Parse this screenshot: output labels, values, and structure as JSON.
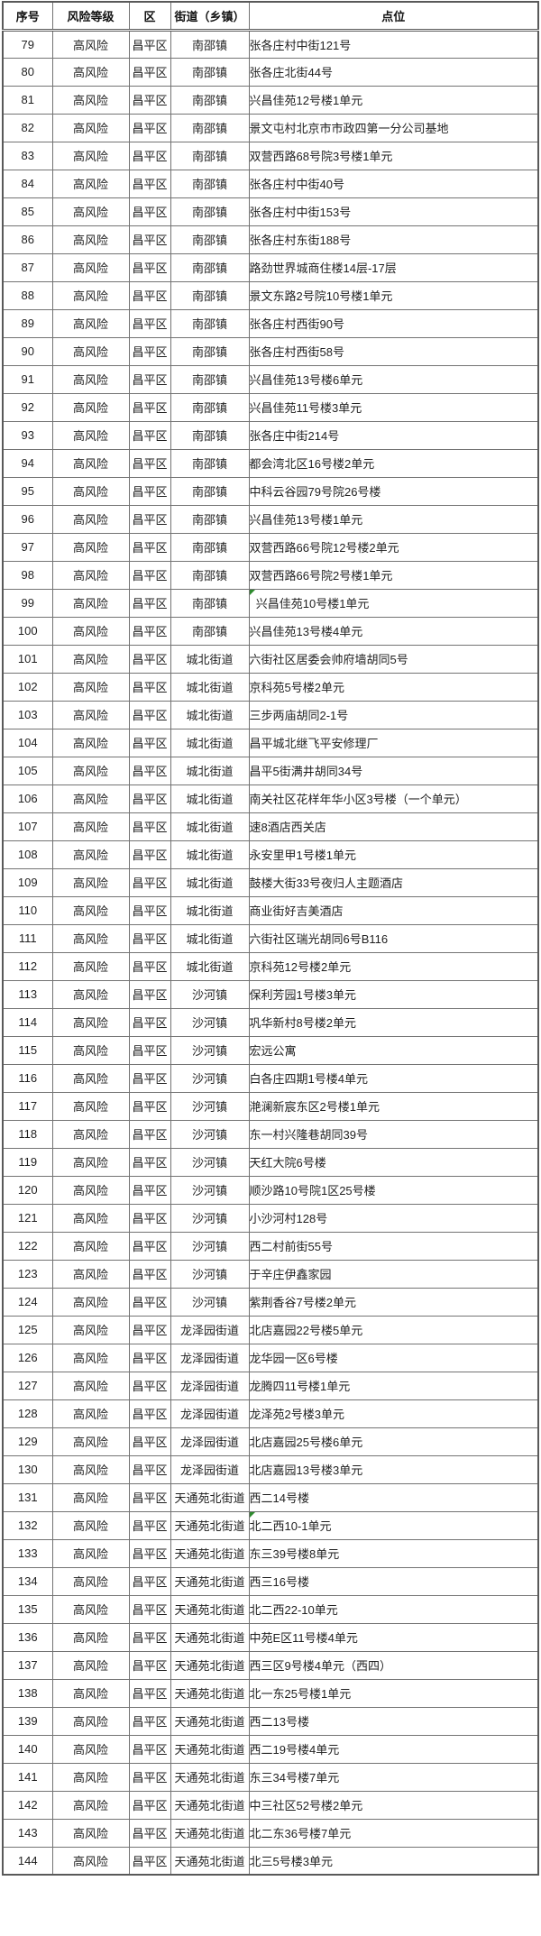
{
  "colors": {
    "grid_border": "#737373",
    "outer_border": "#595959",
    "text": "#1f1f1f",
    "error_marker_green": "#2e8b2e"
  },
  "table": {
    "headers": [
      "序号",
      "风险等级",
      "区",
      "街道（乡镇）",
      "点位"
    ],
    "rows": [
      {
        "no": "79",
        "risk": "高风险",
        "district": "昌平区",
        "street": "南邵镇",
        "location": "张各庄村中街121号",
        "marker": false
      },
      {
        "no": "80",
        "risk": "高风险",
        "district": "昌平区",
        "street": "南邵镇",
        "location": "张各庄北街44号",
        "marker": false
      },
      {
        "no": "81",
        "risk": "高风险",
        "district": "昌平区",
        "street": "南邵镇",
        "location": "兴昌佳苑12号楼1单元",
        "marker": false
      },
      {
        "no": "82",
        "risk": "高风险",
        "district": "昌平区",
        "street": "南邵镇",
        "location": "景文屯村北京市市政四第一分公司基地",
        "marker": false
      },
      {
        "no": "83",
        "risk": "高风险",
        "district": "昌平区",
        "street": "南邵镇",
        "location": "双营西路68号院3号楼1单元",
        "marker": false
      },
      {
        "no": "84",
        "risk": "高风险",
        "district": "昌平区",
        "street": "南邵镇",
        "location": "张各庄村中街40号",
        "marker": false
      },
      {
        "no": "85",
        "risk": "高风险",
        "district": "昌平区",
        "street": "南邵镇",
        "location": "张各庄村中街153号",
        "marker": false
      },
      {
        "no": "86",
        "risk": "高风险",
        "district": "昌平区",
        "street": "南邵镇",
        "location": "张各庄村东街188号",
        "marker": false
      },
      {
        "no": "87",
        "risk": "高风险",
        "district": "昌平区",
        "street": "南邵镇",
        "location": "路劲世界城商住楼14层-17层",
        "marker": false
      },
      {
        "no": "88",
        "risk": "高风险",
        "district": "昌平区",
        "street": "南邵镇",
        "location": "景文东路2号院10号楼1单元",
        "marker": false
      },
      {
        "no": "89",
        "risk": "高风险",
        "district": "昌平区",
        "street": "南邵镇",
        "location": "张各庄村西街90号",
        "marker": false
      },
      {
        "no": "90",
        "risk": "高风险",
        "district": "昌平区",
        "street": "南邵镇",
        "location": "张各庄村西街58号",
        "marker": false
      },
      {
        "no": "91",
        "risk": "高风险",
        "district": "昌平区",
        "street": "南邵镇",
        "location": "兴昌佳苑13号楼6单元",
        "marker": false
      },
      {
        "no": "92",
        "risk": "高风险",
        "district": "昌平区",
        "street": "南邵镇",
        "location": "兴昌佳苑11号楼3单元",
        "marker": false
      },
      {
        "no": "93",
        "risk": "高风险",
        "district": "昌平区",
        "street": "南邵镇",
        "location": "张各庄中街214号",
        "marker": false
      },
      {
        "no": "94",
        "risk": "高风险",
        "district": "昌平区",
        "street": "南邵镇",
        "location": "都会湾北区16号楼2单元",
        "marker": false
      },
      {
        "no": "95",
        "risk": "高风险",
        "district": "昌平区",
        "street": "南邵镇",
        "location": "中科云谷园79号院26号楼",
        "marker": false
      },
      {
        "no": "96",
        "risk": "高风险",
        "district": "昌平区",
        "street": "南邵镇",
        "location": "兴昌佳苑13号楼1单元",
        "marker": false
      },
      {
        "no": "97",
        "risk": "高风险",
        "district": "昌平区",
        "street": "南邵镇",
        "location": "双营西路66号院12号楼2单元",
        "marker": false
      },
      {
        "no": "98",
        "risk": "高风险",
        "district": "昌平区",
        "street": "南邵镇",
        "location": "双营西路66号院2号楼1单元",
        "marker": false
      },
      {
        "no": "99",
        "risk": "高风险",
        "district": "昌平区",
        "street": "南邵镇",
        "location": "  兴昌佳苑10号楼1单元",
        "marker": true
      },
      {
        "no": "100",
        "risk": "高风险",
        "district": "昌平区",
        "street": "南邵镇",
        "location": "兴昌佳苑13号楼4单元",
        "marker": false
      },
      {
        "no": "101",
        "risk": "高风险",
        "district": "昌平区",
        "street": "城北街道",
        "location": "六街社区居委会帅府墙胡同5号",
        "marker": false
      },
      {
        "no": "102",
        "risk": "高风险",
        "district": "昌平区",
        "street": "城北街道",
        "location": "京科苑5号楼2单元",
        "marker": false
      },
      {
        "no": "103",
        "risk": "高风险",
        "district": "昌平区",
        "street": "城北街道",
        "location": "三步两庙胡同2-1号",
        "marker": false
      },
      {
        "no": "104",
        "risk": "高风险",
        "district": "昌平区",
        "street": "城北街道",
        "location": "昌平城北继飞平安修理厂",
        "marker": false
      },
      {
        "no": "105",
        "risk": "高风险",
        "district": "昌平区",
        "street": "城北街道",
        "location": "昌平5街满井胡同34号",
        "marker": false
      },
      {
        "no": "106",
        "risk": "高风险",
        "district": "昌平区",
        "street": "城北街道",
        "location": "南关社区花样年华小区3号楼（一个单元）",
        "marker": false
      },
      {
        "no": "107",
        "risk": "高风险",
        "district": "昌平区",
        "street": "城北街道",
        "location": "速8酒店西关店",
        "marker": false
      },
      {
        "no": "108",
        "risk": "高风险",
        "district": "昌平区",
        "street": "城北街道",
        "location": "永安里甲1号楼1单元",
        "marker": false
      },
      {
        "no": "109",
        "risk": "高风险",
        "district": "昌平区",
        "street": "城北街道",
        "location": "鼓楼大街33号夜归人主题酒店",
        "marker": false
      },
      {
        "no": "110",
        "risk": "高风险",
        "district": "昌平区",
        "street": "城北街道",
        "location": "商业街好吉美酒店",
        "marker": false
      },
      {
        "no": "111",
        "risk": "高风险",
        "district": "昌平区",
        "street": "城北街道",
        "location": "六街社区瑞光胡同6号B116",
        "marker": false
      },
      {
        "no": "112",
        "risk": "高风险",
        "district": "昌平区",
        "street": "城北街道",
        "location": "京科苑12号楼2单元",
        "marker": false
      },
      {
        "no": "113",
        "risk": "高风险",
        "district": "昌平区",
        "street": "沙河镇",
        "location": "保利芳园1号楼3单元",
        "marker": false
      },
      {
        "no": "114",
        "risk": "高风险",
        "district": "昌平区",
        "street": "沙河镇",
        "location": "巩华新村8号楼2单元",
        "marker": false
      },
      {
        "no": "115",
        "risk": "高风险",
        "district": "昌平区",
        "street": "沙河镇",
        "location": "宏远公寓",
        "marker": false
      },
      {
        "no": "116",
        "risk": "高风险",
        "district": "昌平区",
        "street": "沙河镇",
        "location": "白各庄四期1号楼4单元",
        "marker": false
      },
      {
        "no": "117",
        "risk": "高风险",
        "district": "昌平区",
        "street": "沙河镇",
        "location": "滟澜新宸东区2号楼1单元",
        "marker": false
      },
      {
        "no": "118",
        "risk": "高风险",
        "district": "昌平区",
        "street": "沙河镇",
        "location": "东一村兴隆巷胡同39号",
        "marker": false
      },
      {
        "no": "119",
        "risk": "高风险",
        "district": "昌平区",
        "street": "沙河镇",
        "location": "天红大院6号楼",
        "marker": false
      },
      {
        "no": "120",
        "risk": "高风险",
        "district": "昌平区",
        "street": "沙河镇",
        "location": "顺沙路10号院1区25号楼",
        "marker": false
      },
      {
        "no": "121",
        "risk": "高风险",
        "district": "昌平区",
        "street": "沙河镇",
        "location": "小沙河村128号",
        "marker": false
      },
      {
        "no": "122",
        "risk": "高风险",
        "district": "昌平区",
        "street": "沙河镇",
        "location": "西二村前街55号",
        "marker": false
      },
      {
        "no": "123",
        "risk": "高风险",
        "district": "昌平区",
        "street": "沙河镇",
        "location": "于辛庄伊鑫家园",
        "marker": false
      },
      {
        "no": "124",
        "risk": "高风险",
        "district": "昌平区",
        "street": "沙河镇",
        "location": "紫荆香谷7号楼2单元",
        "marker": false
      },
      {
        "no": "125",
        "risk": "高风险",
        "district": "昌平区",
        "street": "龙泽园街道",
        "location": "北店嘉园22号楼5单元",
        "marker": false
      },
      {
        "no": "126",
        "risk": "高风险",
        "district": "昌平区",
        "street": "龙泽园街道",
        "location": "龙华园一区6号楼",
        "marker": false
      },
      {
        "no": "127",
        "risk": "高风险",
        "district": "昌平区",
        "street": "龙泽园街道",
        "location": "龙腾四11号楼1单元",
        "marker": false
      },
      {
        "no": "128",
        "risk": "高风险",
        "district": "昌平区",
        "street": "龙泽园街道",
        "location": "龙泽苑2号楼3单元",
        "marker": false
      },
      {
        "no": "129",
        "risk": "高风险",
        "district": "昌平区",
        "street": "龙泽园街道",
        "location": "北店嘉园25号楼6单元",
        "marker": false
      },
      {
        "no": "130",
        "risk": "高风险",
        "district": "昌平区",
        "street": "龙泽园街道",
        "location": "北店嘉园13号楼3单元",
        "marker": false
      },
      {
        "no": "131",
        "risk": "高风险",
        "district": "昌平区",
        "street": "天通苑北街道",
        "location": "西二14号楼",
        "marker": false
      },
      {
        "no": "132",
        "risk": "高风险",
        "district": "昌平区",
        "street": "天通苑北街道",
        "location": "北二西10-1单元",
        "marker": true
      },
      {
        "no": "133",
        "risk": "高风险",
        "district": "昌平区",
        "street": "天通苑北街道",
        "location": "东三39号楼8单元",
        "marker": false
      },
      {
        "no": "134",
        "risk": "高风险",
        "district": "昌平区",
        "street": "天通苑北街道",
        "location": "西三16号楼",
        "marker": false
      },
      {
        "no": "135",
        "risk": "高风险",
        "district": "昌平区",
        "street": "天通苑北街道",
        "location": "北二西22-10单元",
        "marker": false
      },
      {
        "no": "136",
        "risk": "高风险",
        "district": "昌平区",
        "street": "天通苑北街道",
        "location": "中苑E区11号楼4单元",
        "marker": false
      },
      {
        "no": "137",
        "risk": "高风险",
        "district": "昌平区",
        "street": "天通苑北街道",
        "location": "西三区9号楼4单元（西四）",
        "marker": false
      },
      {
        "no": "138",
        "risk": "高风险",
        "district": "昌平区",
        "street": "天通苑北街道",
        "location": "北一东25号楼1单元",
        "marker": false
      },
      {
        "no": "139",
        "risk": "高风险",
        "district": "昌平区",
        "street": "天通苑北街道",
        "location": "西二13号楼",
        "marker": false
      },
      {
        "no": "140",
        "risk": "高风险",
        "district": "昌平区",
        "street": "天通苑北街道",
        "location": "西二19号楼4单元",
        "marker": false
      },
      {
        "no": "141",
        "risk": "高风险",
        "district": "昌平区",
        "street": "天通苑北街道",
        "location": "东三34号楼7单元",
        "marker": false
      },
      {
        "no": "142",
        "risk": "高风险",
        "district": "昌平区",
        "street": "天通苑北街道",
        "location": "中三社区52号楼2单元",
        "marker": false
      },
      {
        "no": "143",
        "risk": "高风险",
        "district": "昌平区",
        "street": "天通苑北街道",
        "location": "北二东36号楼7单元",
        "marker": false
      },
      {
        "no": "144",
        "risk": "高风险",
        "district": "昌平区",
        "street": "天通苑北街道",
        "location": "北三5号楼3单元",
        "marker": false
      }
    ]
  }
}
